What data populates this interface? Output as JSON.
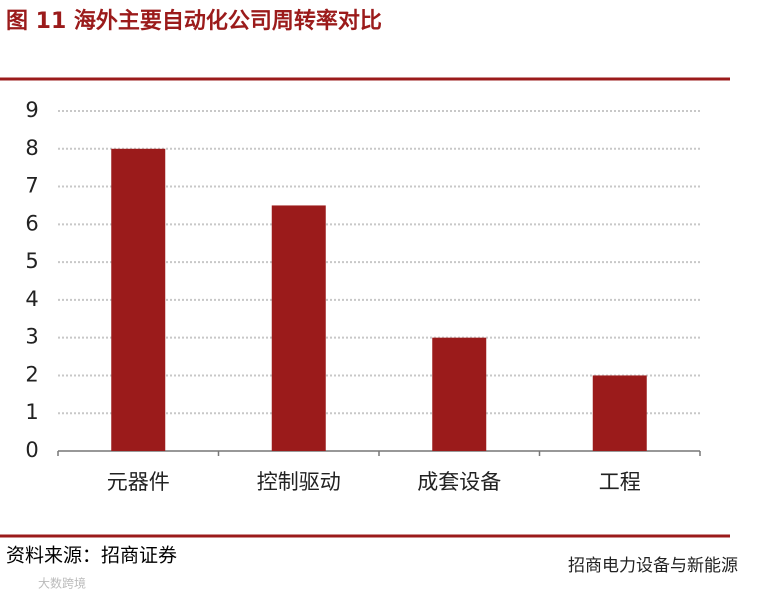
{
  "chart_data": {
    "type": "bar",
    "title": "图 11 海外主要自动化公司周转率对比",
    "categories": [
      "元器件",
      "控制驱动",
      "成套设备",
      "工程"
    ],
    "values": [
      8.0,
      6.5,
      3.0,
      2.0
    ],
    "color": "#9b1b1b",
    "ylim": [
      0,
      9
    ],
    "yticks": [
      0,
      1,
      2,
      3,
      4,
      5,
      6,
      7,
      8,
      9
    ],
    "grid": true,
    "annotations": [
      "资料来源：招商证券",
      "招商电力设备与新能源",
      "大数跨境"
    ]
  }
}
